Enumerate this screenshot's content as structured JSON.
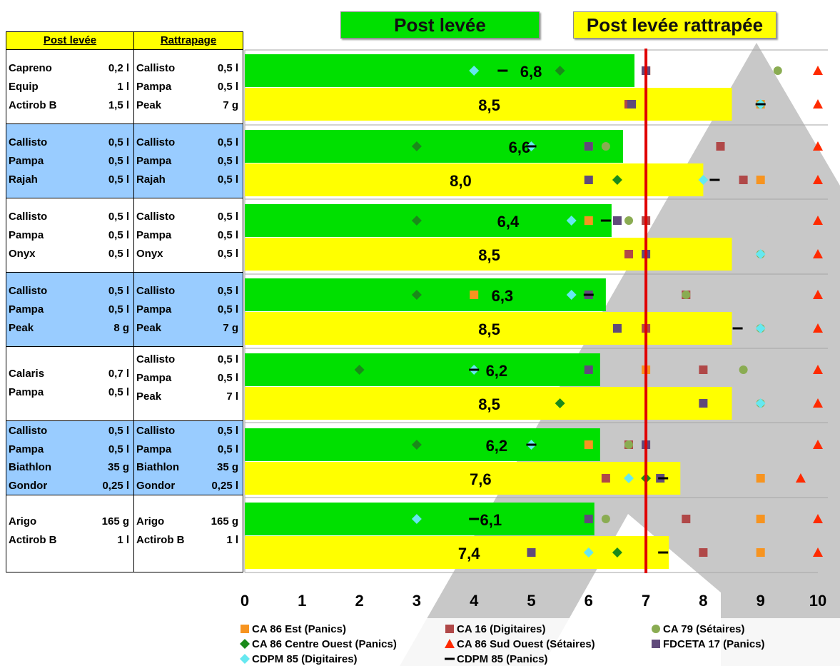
{
  "header": {
    "post_levee": "Post levée",
    "rattrapee": "Post levée rattrapée"
  },
  "table": {
    "col1_header": "Post levée",
    "col2_header": "Rattrapage",
    "groups": [
      {
        "post": [
          [
            "Capreno",
            "0,2 l"
          ],
          [
            "Equip",
            "1 l"
          ],
          [
            "Actirob B",
            "1,5 l"
          ]
        ],
        "ratt": [
          [
            "Callisto",
            "0,5 l"
          ],
          [
            "Pampa",
            "0,5 l"
          ],
          [
            "Peak",
            "7 g"
          ]
        ]
      },
      {
        "post": [
          [
            "Callisto",
            "0,5 l"
          ],
          [
            "Pampa",
            "0,5 l"
          ],
          [
            "Rajah",
            "0,5 l"
          ]
        ],
        "ratt": [
          [
            "Callisto",
            "0,5 l"
          ],
          [
            "Pampa",
            "0,5 l"
          ],
          [
            "Rajah",
            "0,5 l"
          ]
        ]
      },
      {
        "post": [
          [
            "Callisto",
            "0,5 l"
          ],
          [
            "Pampa",
            "0,5 l"
          ],
          [
            "Onyx",
            "0,5 l"
          ]
        ],
        "ratt": [
          [
            "Callisto",
            "0,5 l"
          ],
          [
            "Pampa",
            "0,5 l"
          ],
          [
            "Onyx",
            "0,5 l"
          ]
        ]
      },
      {
        "post": [
          [
            "Callisto",
            "0,5 l"
          ],
          [
            "Pampa",
            "0,5 l"
          ],
          [
            "Peak",
            "8 g"
          ]
        ],
        "ratt": [
          [
            "Callisto",
            "0,5 l"
          ],
          [
            "Pampa",
            "0,5 l"
          ],
          [
            "Peak",
            "7 g"
          ]
        ]
      },
      {
        "post": [
          [
            "Calaris",
            "0,7 l"
          ],
          [
            "Pampa",
            "0,5 l"
          ]
        ],
        "ratt": [
          [
            "Callisto",
            "0,5 l"
          ],
          [
            "Pampa",
            "0,5 l"
          ],
          [
            "Peak",
            "7 l"
          ]
        ]
      },
      {
        "post": [
          [
            "Callisto",
            "0,5 l"
          ],
          [
            "Pampa",
            "0,5 l"
          ],
          [
            "Biathlon",
            "35 g"
          ],
          [
            "Gondor",
            "0,25  l"
          ]
        ],
        "ratt": [
          [
            "Callisto",
            "0,5 l"
          ],
          [
            "Pampa",
            "0,5 l"
          ],
          [
            "Biathlon",
            "35 g"
          ],
          [
            "Gondor",
            "0,25 l"
          ]
        ]
      },
      {
        "post": [
          [
            "Arigo",
            "165 g"
          ],
          [
            "Actirob B",
            "1 l"
          ]
        ],
        "ratt": [
          [
            "Arigo",
            "165 g"
          ],
          [
            "Actirob B",
            "1 l"
          ]
        ]
      }
    ]
  },
  "colors": {
    "green_bar": "#00e000",
    "yellow_bar": "#ffff00",
    "threshold": "#e00000",
    "table_blue": "#99ccff",
    "watermark": "#c8c8c8"
  },
  "chart_data": {
    "type": "bar",
    "orientation": "horizontal",
    "xlim": [
      0,
      10
    ],
    "x_ticks": [
      "0",
      "1",
      "2",
      "3",
      "4",
      "5",
      "6",
      "7",
      "8",
      "9",
      "10"
    ],
    "threshold_x": 7,
    "bars": [
      {
        "post": 6.8,
        "post_label": "6,8",
        "ratt": 8.5,
        "ratt_label": "8,5"
      },
      {
        "post": 6.6,
        "post_label": "6,6",
        "ratt": 8.0,
        "ratt_label": "8,0"
      },
      {
        "post": 6.4,
        "post_label": "6,4",
        "ratt": 8.5,
        "ratt_label": "8,5"
      },
      {
        "post": 6.3,
        "post_label": "6,3",
        "ratt": 8.5,
        "ratt_label": "8,5"
      },
      {
        "post": 6.2,
        "post_label": "6,2",
        "ratt": 8.5,
        "ratt_label": "8,5"
      },
      {
        "post": 6.2,
        "post_label": "6,2",
        "ratt": 7.6,
        "ratt_label": "7,6"
      },
      {
        "post": 6.1,
        "post_label": "6,1",
        "ratt": 7.4,
        "ratt_label": "7,4"
      }
    ],
    "series": [
      {
        "name": "CA 86 Est (Panics)",
        "marker": "square",
        "color": "#f79420",
        "post": [
          7,
          6,
          6,
          4,
          7,
          6,
          9
        ],
        "ratt": [
          9,
          9,
          null,
          null,
          null,
          9,
          9
        ]
      },
      {
        "name": "CA 16 (Digitaires)",
        "marker": "square",
        "color": "#b04848",
        "post": [
          7,
          8.3,
          7,
          7.7,
          8,
          6.7,
          7.7
        ],
        "ratt": [
          6.7,
          8.7,
          6.7,
          7,
          null,
          6.3,
          8
        ]
      },
      {
        "name": "CA 79 (Sétaires)",
        "marker": "circle",
        "color": "#8aac52",
        "post": [
          9.3,
          6.3,
          6.7,
          7.7,
          8.7,
          6.7,
          6.3
        ],
        "ratt": [
          9,
          null,
          9,
          9,
          9,
          null,
          null
        ]
      },
      {
        "name": "CA 86 Centre Ouest (Panics)",
        "marker": "diamond",
        "color": "#1a8a1a",
        "post": [
          5.5,
          3,
          3,
          3,
          2,
          3,
          3
        ],
        "ratt": [
          null,
          6.5,
          null,
          null,
          5.5,
          7,
          6.5
        ]
      },
      {
        "name": "CA 86 Sud Ouest (Sétaires)",
        "marker": "triangle",
        "color": "#ff2a00",
        "post": [
          10,
          10,
          10,
          10,
          10,
          10,
          10
        ],
        "ratt": [
          10,
          10,
          10,
          10,
          10,
          9.7,
          10
        ]
      },
      {
        "name": "FDCETA 17 (Panics)",
        "marker": "square",
        "color": "#604a7b",
        "post": [
          7,
          6,
          6.5,
          6,
          6,
          7,
          6
        ],
        "ratt": [
          6.75,
          6,
          7,
          6.5,
          8,
          7.25,
          5
        ]
      },
      {
        "name": "CDPM 85 (Digitaires)",
        "marker": "diamond",
        "color": "#66e8f0",
        "post": [
          4,
          5,
          5.7,
          5.7,
          4,
          5,
          3
        ],
        "ratt": [
          9,
          8,
          9,
          9,
          9,
          6.7,
          6
        ]
      },
      {
        "name": "CDPM 85 (Panics)",
        "marker": "dash",
        "color": "#000000",
        "post": [
          4.5,
          5,
          6.3,
          6,
          4,
          5,
          4
        ],
        "ratt": [
          9,
          8.2,
          null,
          8.6,
          null,
          7.3,
          7.3
        ]
      }
    ]
  }
}
